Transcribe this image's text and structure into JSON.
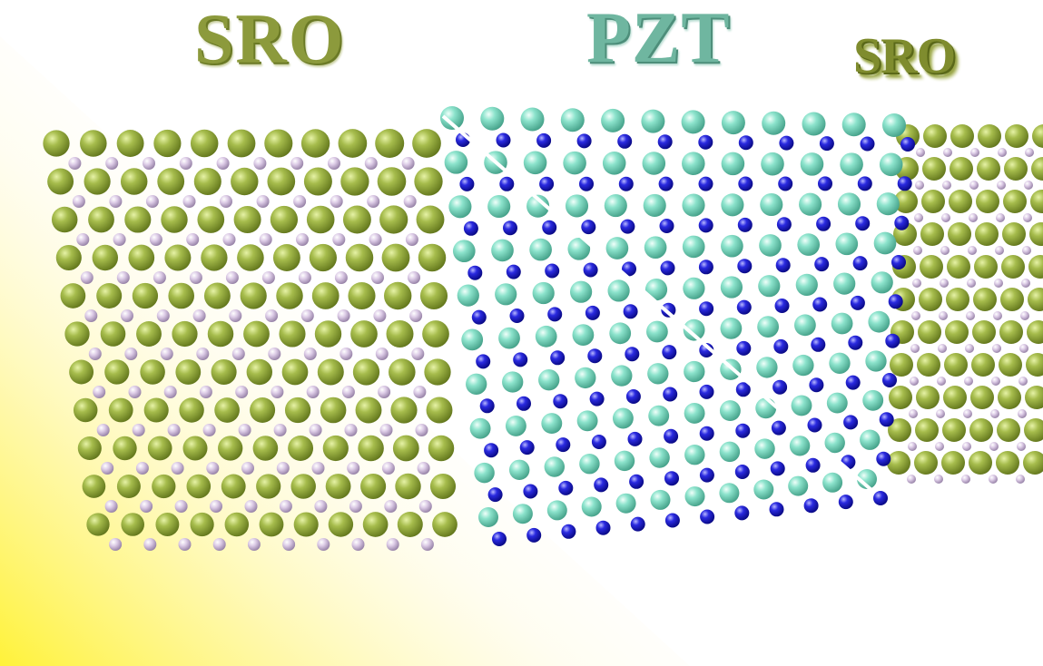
{
  "labels": {
    "left_layer": "SRO",
    "middle_layer": "PZT",
    "right_layer": "SRO"
  },
  "colors": {
    "background": "#ffffff",
    "glow": "#ffee33",
    "sro_large_sphere": "#8ea83a",
    "sro_small_sphere": "#c9b6d6",
    "pzt_large_sphere": "#7fdcc2",
    "pzt_small_sphere": "#1a1ac8",
    "label_sro": "#8c9a3c",
    "label_pzt": "#6fb6a0"
  }
}
